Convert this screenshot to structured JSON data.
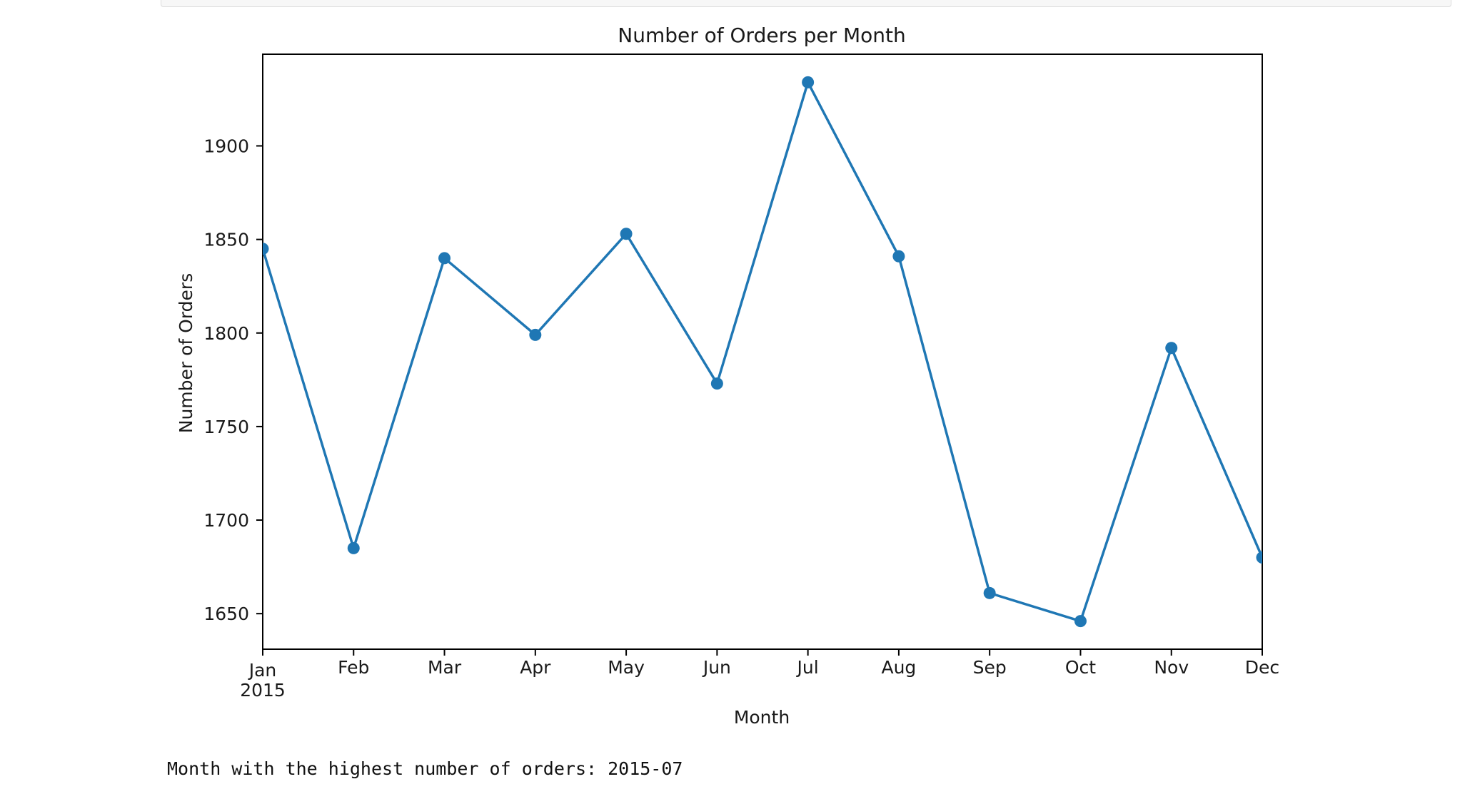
{
  "colors": {
    "series": "#1f77b4",
    "axis": "#000000",
    "text": "#1a1a1a"
  },
  "chart_data": {
    "type": "line",
    "title": "Number of Orders per Month",
    "xlabel": "Month",
    "ylabel": "Number of Orders",
    "x_ticks": [
      "Jan",
      "Feb",
      "Mar",
      "Apr",
      "May",
      "Jun",
      "Jul",
      "Aug",
      "Sep",
      "Oct",
      "Nov",
      "Dec"
    ],
    "x_year_label": "2015",
    "x": [
      "2015-01",
      "2015-02",
      "2015-03",
      "2015-04",
      "2015-05",
      "2015-06",
      "2015-07",
      "2015-08",
      "2015-09",
      "2015-10",
      "2015-11",
      "2015-12"
    ],
    "series": [
      {
        "values": [
          1845,
          1685,
          1840,
          1799,
          1853,
          1773,
          1934,
          1841,
          1661,
          1646,
          1792,
          1680
        ],
        "marker": "circle"
      }
    ],
    "y_ticks": [
      1650,
      1700,
      1750,
      1800,
      1850,
      1900
    ],
    "ylim": [
      1631,
      1949
    ],
    "grid": false,
    "legend": "none"
  },
  "output": {
    "text": "Month with the highest number of orders: 2015-07"
  }
}
